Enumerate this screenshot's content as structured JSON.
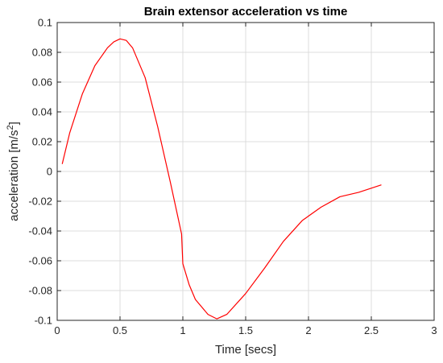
{
  "chart_data": {
    "type": "line",
    "title": "Brain extensor acceleration vs time",
    "xlabel": "Time [secs]",
    "ylabel_main": "acceleration [m/s",
    "ylabel_sup": "2",
    "ylabel_close": "]",
    "xlim": [
      0,
      3
    ],
    "ylim": [
      -0.1,
      0.1
    ],
    "x_ticks": [
      0,
      0.5,
      1,
      1.5,
      2,
      2.5,
      3
    ],
    "x_tick_labels": [
      "0",
      "0.5",
      "1",
      "1.5",
      "2",
      "2.5",
      "3"
    ],
    "y_ticks": [
      -0.1,
      -0.08,
      -0.06,
      -0.04,
      -0.02,
      0,
      0.02,
      0.04,
      0.06,
      0.08,
      0.1
    ],
    "y_tick_labels": [
      "-0.1",
      "-0.08",
      "-0.06",
      "-0.04",
      "-0.02",
      "0",
      "0.02",
      "0.04",
      "0.06",
      "0.08",
      "0.1"
    ],
    "grid": true,
    "series": [
      {
        "color": "#ff0000",
        "x": [
          0.04,
          0.1,
          0.2,
          0.3,
          0.4,
          0.45,
          0.5,
          0.55,
          0.6,
          0.7,
          0.8,
          0.9,
          0.99,
          1.0,
          1.05,
          1.1,
          1.2,
          1.27,
          1.35,
          1.5,
          1.65,
          1.8,
          1.95,
          2.1,
          2.25,
          2.4,
          2.58
        ],
        "y": [
          0.005,
          0.026,
          0.052,
          0.071,
          0.083,
          0.087,
          0.089,
          0.088,
          0.083,
          0.063,
          0.03,
          -0.007,
          -0.042,
          -0.062,
          -0.076,
          -0.086,
          -0.096,
          -0.099,
          -0.096,
          -0.082,
          -0.065,
          -0.047,
          -0.033,
          -0.024,
          -0.017,
          -0.014,
          -0.009
        ]
      }
    ]
  }
}
